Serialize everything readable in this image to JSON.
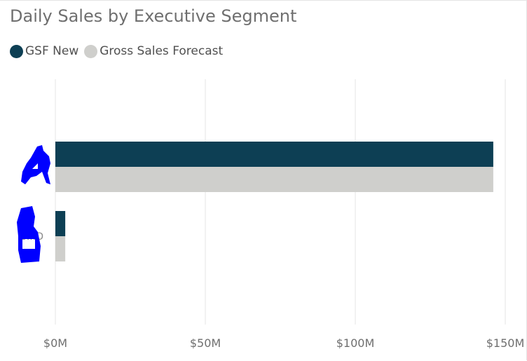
{
  "colors": {
    "gsf_new": "#0d3f54",
    "gross_sales_forecast": "#cfcfcc",
    "redaction": "#0000ff",
    "gridline": "#e6e6e6"
  },
  "chart_data": {
    "type": "bar",
    "orientation": "horizontal",
    "title": "Daily Sales by Executive Segment",
    "xlabel": "",
    "ylabel": "",
    "categories": [
      "",
      "S...D"
    ],
    "series": [
      {
        "name": "GSF New",
        "values": [
          146,
          3.3
        ]
      },
      {
        "name": "Gross Sales Forecast",
        "values": [
          146,
          3.3
        ]
      }
    ],
    "xlim": [
      0,
      150
    ],
    "x_ticks": [
      0,
      50,
      100,
      150
    ],
    "x_tick_labels": [
      "$0M",
      "$50M",
      "$100M",
      "$150M"
    ],
    "units": "$M",
    "grid": true,
    "legend_position": "top-left"
  }
}
